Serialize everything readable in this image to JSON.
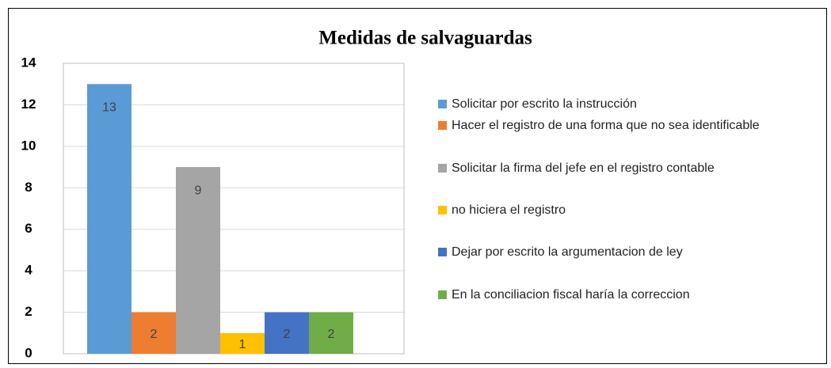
{
  "chart_data": {
    "type": "bar",
    "title": "Medidas de salvaguardas",
    "categories": [
      null
    ],
    "series": [
      {
        "name": "Solicitar por escrito la instrucción",
        "color": "#5b9bd5",
        "values": [
          13
        ]
      },
      {
        "name": "Hacer el registro de una forma que no sea identificable",
        "color": "#ed7d31",
        "values": [
          2
        ]
      },
      {
        "name": "Solicitar la firma del jefe en el registro contable",
        "color": "#a5a5a5",
        "values": [
          9
        ]
      },
      {
        "name": "no hiciera el registro",
        "color": "#ffc000",
        "values": [
          1
        ]
      },
      {
        "name": "Dejar por escrito la argumentacion de ley",
        "color": "#4472c4",
        "values": [
          2
        ]
      },
      {
        "name": "En la conciliacion fiscal haría la correccion",
        "color": "#70ad47",
        "values": [
          2
        ]
      }
    ],
    "ylim": [
      0,
      14
    ],
    "yticks": [
      0,
      2,
      4,
      6,
      8,
      10,
      12,
      14
    ],
    "grid": true,
    "legend": "right"
  }
}
